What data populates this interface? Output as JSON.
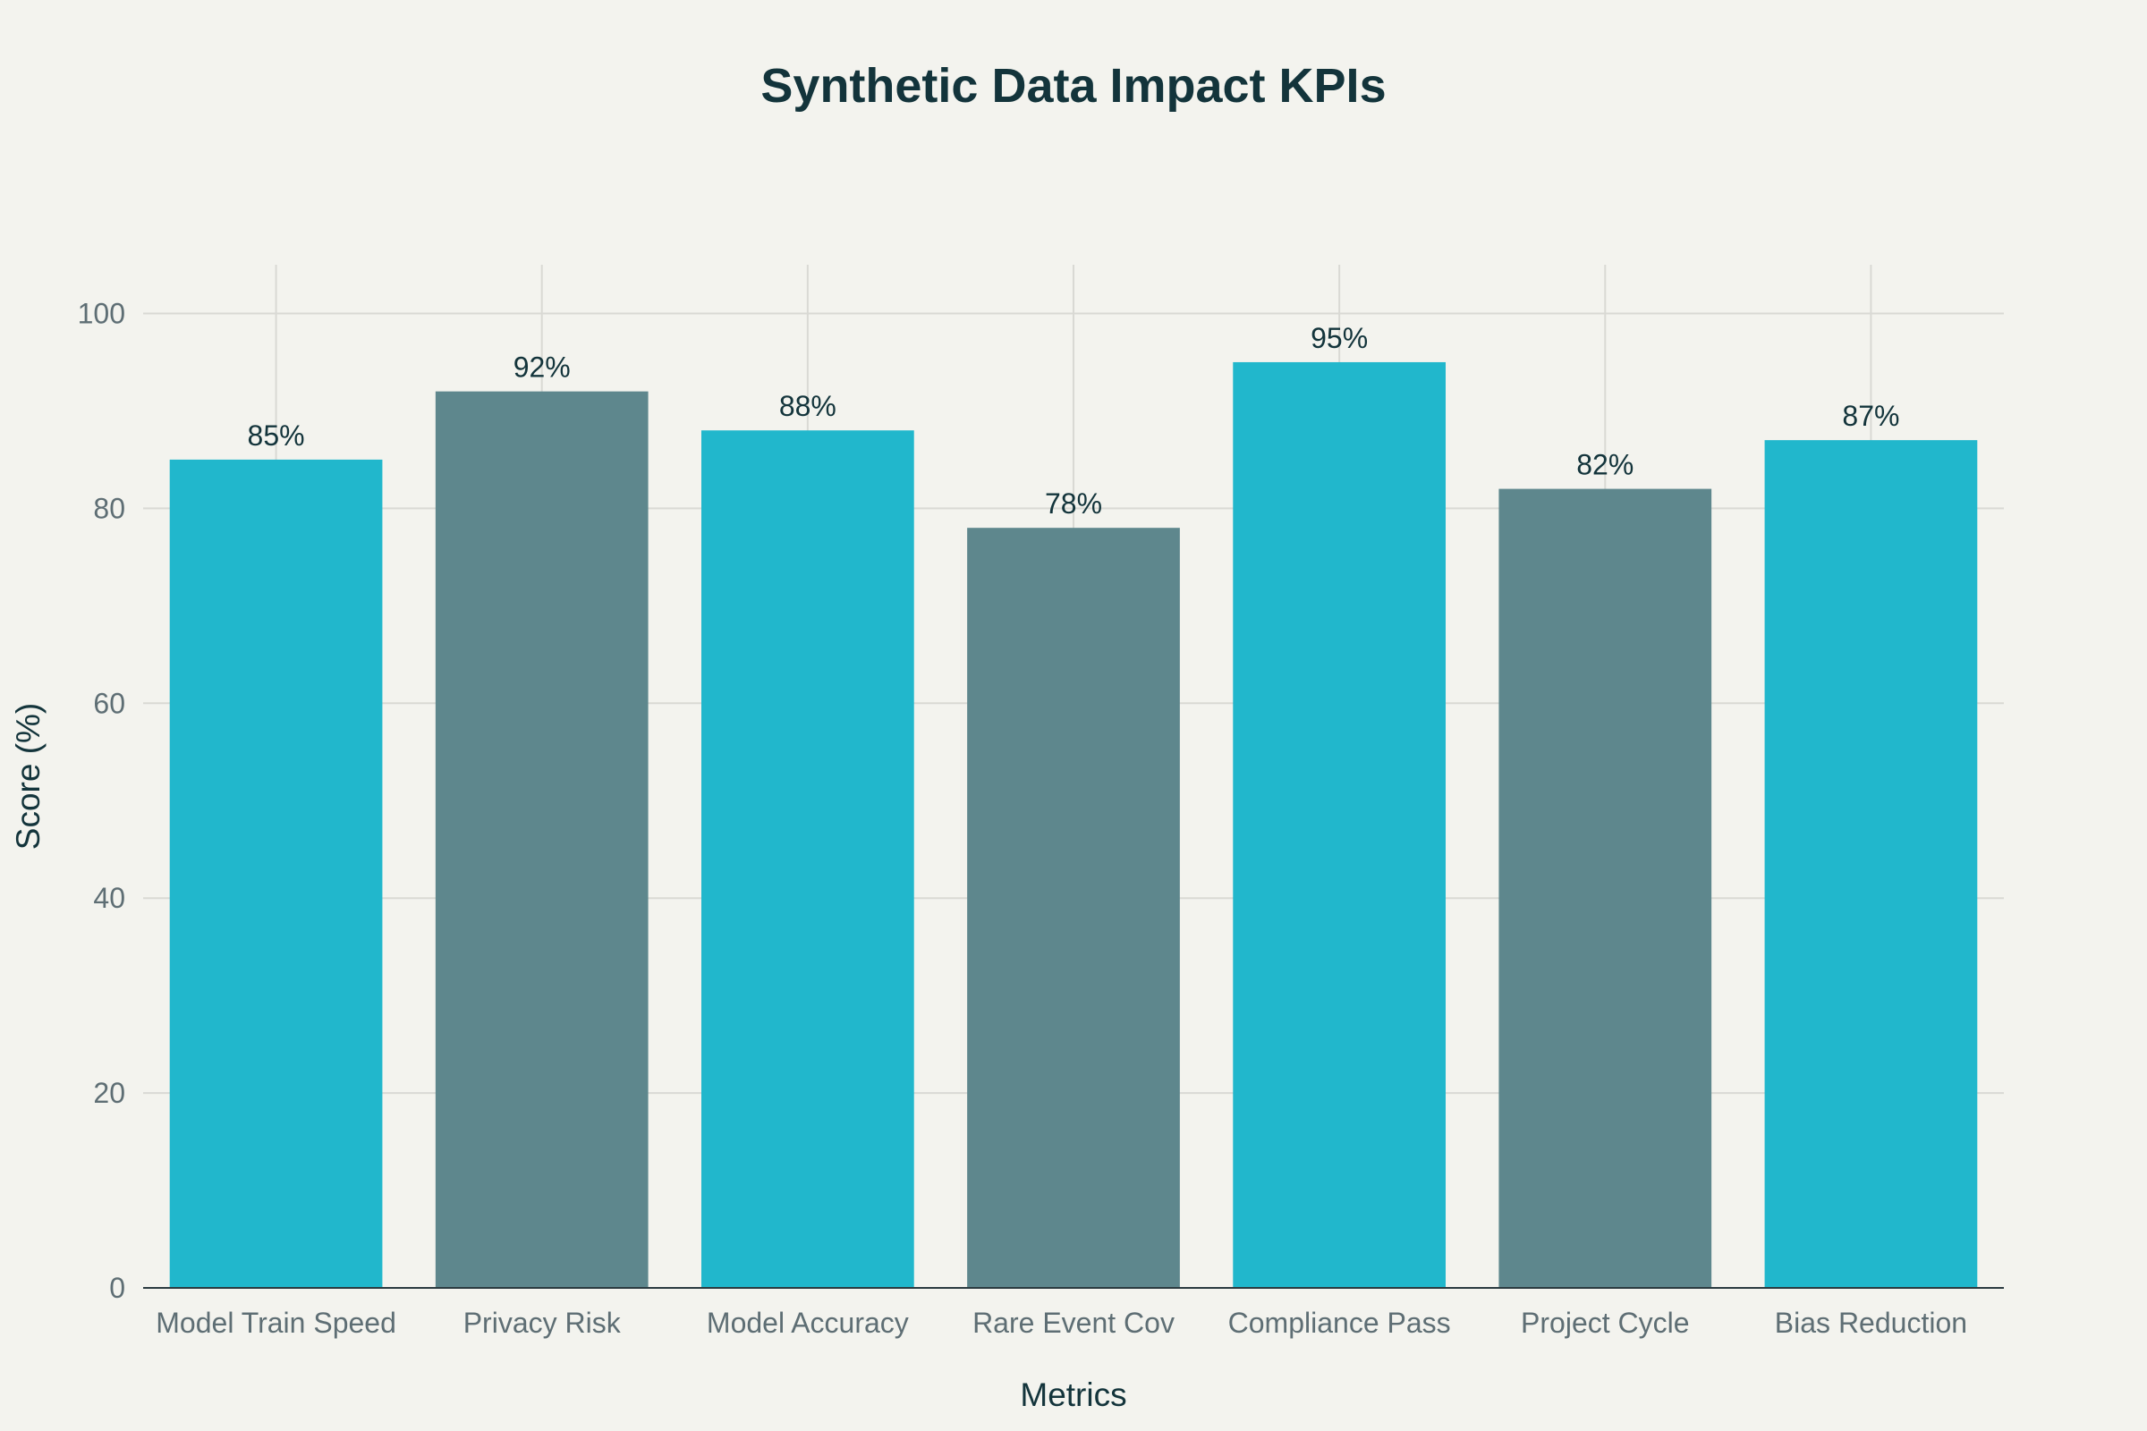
{
  "chart_data": {
    "type": "bar",
    "title": "Synthetic Data Impact KPIs",
    "xlabel": "Metrics",
    "ylabel": "Score (%)",
    "categories": [
      "Model Train Speed",
      "Privacy Risk",
      "Model Accuracy",
      "Rare Event Cov",
      "Compliance Pass",
      "Project Cycle",
      "Bias Reduction"
    ],
    "values": [
      85,
      92,
      88,
      78,
      95,
      82,
      87
    ],
    "data_labels": [
      "85%",
      "92%",
      "88%",
      "78%",
      "95%",
      "82%",
      "87%"
    ],
    "bar_colors": [
      "#21B7CC",
      "#5E878D",
      "#21B7CC",
      "#5E878D",
      "#21B7CC",
      "#5E878D",
      "#21B7CC"
    ],
    "ylim": [
      0,
      105
    ],
    "yticks": [
      0,
      20,
      40,
      60,
      80,
      100
    ],
    "grid": true,
    "legend": false,
    "colors": {
      "background": "#F3F3EE",
      "accent_cyan": "#21B7CC",
      "accent_slate": "#5E878D",
      "text_dark": "#13343B",
      "tick_text": "#5E6E74",
      "grid": "#D9D9D4"
    }
  }
}
